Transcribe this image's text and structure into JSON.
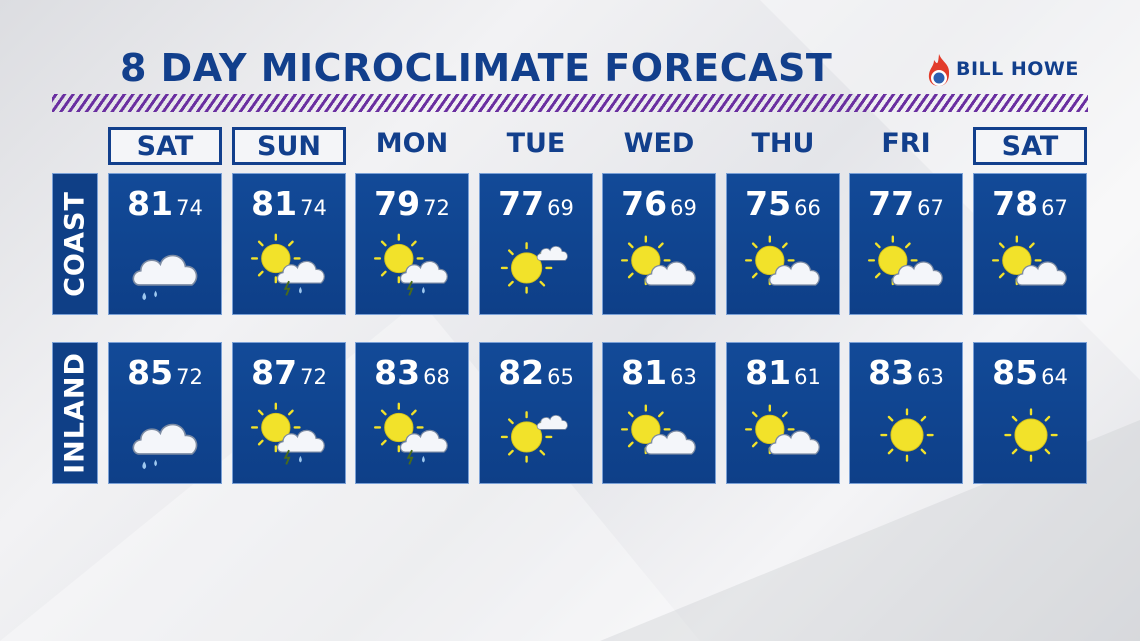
{
  "title": "8 DAY MICROCLIMATE FORECAST",
  "sponsor": "BILL HOWE",
  "colors": {
    "navy": "#0f3f86",
    "title": "#123f8c",
    "stripe": "#6a2fa0",
    "sun": "#f2e22a"
  },
  "days": [
    {
      "label": "SAT",
      "highlight": true
    },
    {
      "label": "SUN",
      "highlight": true
    },
    {
      "label": "MON",
      "highlight": false
    },
    {
      "label": "TUE",
      "highlight": false
    },
    {
      "label": "WED",
      "highlight": false
    },
    {
      "label": "THU",
      "highlight": false
    },
    {
      "label": "FRI",
      "highlight": false
    },
    {
      "label": "SAT",
      "highlight": true
    }
  ],
  "rows": [
    {
      "label": "COAST",
      "forecast": [
        {
          "hi": "81",
          "lo": "74",
          "icon": "rain-cloud-icon"
        },
        {
          "hi": "81",
          "lo": "74",
          "icon": "sun-thunderstorm-icon"
        },
        {
          "hi": "79",
          "lo": "72",
          "icon": "sun-thunderstorm-icon"
        },
        {
          "hi": "77",
          "lo": "69",
          "icon": "sun-small-cloud-icon"
        },
        {
          "hi": "76",
          "lo": "69",
          "icon": "partly-cloudy-icon"
        },
        {
          "hi": "75",
          "lo": "66",
          "icon": "partly-cloudy-icon"
        },
        {
          "hi": "77",
          "lo": "67",
          "icon": "partly-cloudy-icon"
        },
        {
          "hi": "78",
          "lo": "67",
          "icon": "partly-cloudy-icon"
        }
      ]
    },
    {
      "label": "INLAND",
      "forecast": [
        {
          "hi": "85",
          "lo": "72",
          "icon": "rain-cloud-icon"
        },
        {
          "hi": "87",
          "lo": "72",
          "icon": "sun-thunderstorm-icon"
        },
        {
          "hi": "83",
          "lo": "68",
          "icon": "sun-thunderstorm-icon"
        },
        {
          "hi": "82",
          "lo": "65",
          "icon": "sun-small-cloud-icon"
        },
        {
          "hi": "81",
          "lo": "63",
          "icon": "partly-cloudy-icon"
        },
        {
          "hi": "81",
          "lo": "61",
          "icon": "partly-cloudy-icon"
        },
        {
          "hi": "83",
          "lo": "63",
          "icon": "sunny-icon"
        },
        {
          "hi": "85",
          "lo": "64",
          "icon": "sunny-icon"
        }
      ]
    }
  ]
}
